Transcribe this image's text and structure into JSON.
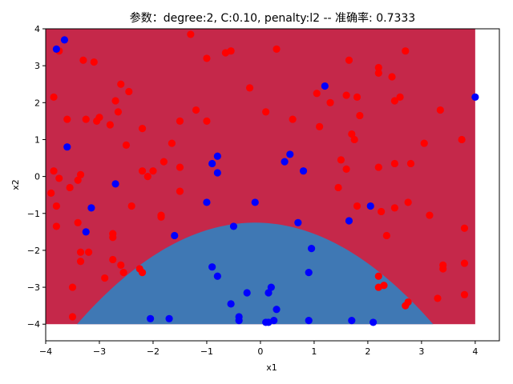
{
  "chart_data": {
    "type": "scatter",
    "title": "参数：degree:2, C:0.10, penalty:l2 -- 准确率: 0.7333",
    "xlabel": "x1",
    "ylabel": "x2",
    "xlim": [
      -4,
      4.45
    ],
    "ylim": [
      -4.45,
      4
    ],
    "xticks": [
      -4,
      -3,
      -2,
      -1,
      0,
      1,
      2,
      3,
      4
    ],
    "yticks": [
      -4,
      -3,
      -2,
      -1,
      0,
      1,
      2,
      3,
      4
    ],
    "grid": false,
    "region": {
      "x_range": [
        -4,
        4
      ],
      "y_range": [
        -4,
        4
      ],
      "colors": {
        "red_region": "#c5284a",
        "blue_region": "#3f78b4"
      },
      "boundary": {
        "form": "parabola",
        "vertex_x": -0.1,
        "vertex_y": -1.25,
        "a": -0.25
      }
    },
    "colors": {
      "red_class": "#ff0000",
      "blue_class": "#0000ff"
    },
    "series": [
      {
        "color": "#ff0000",
        "points": [
          [
            -3.75,
            3.4
          ],
          [
            -3.85,
            2.15
          ],
          [
            -3.6,
            1.55
          ],
          [
            -3.3,
            3.15
          ],
          [
            -3.1,
            3.1
          ],
          [
            -3.25,
            1.55
          ],
          [
            -3.05,
            1.5
          ],
          [
            -3.0,
            1.6
          ],
          [
            -2.8,
            1.4
          ],
          [
            -2.7,
            2.05
          ],
          [
            -2.6,
            2.5
          ],
          [
            -2.45,
            2.3
          ],
          [
            -2.65,
            1.75
          ],
          [
            -2.5,
            0.85
          ],
          [
            -2.2,
            1.3
          ],
          [
            -2.2,
            0.15
          ],
          [
            -2.1,
            0.0
          ],
          [
            -2.0,
            0.15
          ],
          [
            -1.8,
            0.4
          ],
          [
            -1.65,
            0.9
          ],
          [
            -1.5,
            1.5
          ],
          [
            -1.5,
            0.25
          ],
          [
            -1.5,
            -0.4
          ],
          [
            -1.3,
            3.85
          ],
          [
            -1.2,
            1.8
          ],
          [
            -1.0,
            1.5
          ],
          [
            -1.0,
            3.2
          ],
          [
            -0.65,
            3.35
          ],
          [
            -0.55,
            3.4
          ],
          [
            -0.2,
            2.4
          ],
          [
            0.3,
            3.45
          ],
          [
            0.1,
            1.75
          ],
          [
            0.6,
            1.55
          ],
          [
            1.05,
            2.25
          ],
          [
            1.1,
            1.35
          ],
          [
            1.3,
            2.0
          ],
          [
            1.6,
            2.2
          ],
          [
            1.65,
            3.15
          ],
          [
            1.7,
            1.15
          ],
          [
            1.75,
            1.0
          ],
          [
            1.8,
            2.15
          ],
          [
            1.85,
            1.65
          ],
          [
            1.5,
            0.45
          ],
          [
            1.6,
            0.2
          ],
          [
            1.45,
            -0.3
          ],
          [
            1.8,
            -0.8
          ],
          [
            2.2,
            2.8
          ],
          [
            2.2,
            2.95
          ],
          [
            2.45,
            2.7
          ],
          [
            2.5,
            2.05
          ],
          [
            2.6,
            2.15
          ],
          [
            2.7,
            3.4
          ],
          [
            2.2,
            0.25
          ],
          [
            2.5,
            0.35
          ],
          [
            2.8,
            0.35
          ],
          [
            3.05,
            0.9
          ],
          [
            3.35,
            1.8
          ],
          [
            3.75,
            1.0
          ],
          [
            2.25,
            -0.95
          ],
          [
            2.5,
            -0.85
          ],
          [
            2.75,
            -0.7
          ],
          [
            3.15,
            -1.05
          ],
          [
            2.35,
            -1.6
          ],
          [
            3.8,
            -1.4
          ],
          [
            3.8,
            -2.35
          ],
          [
            3.4,
            -2.4
          ],
          [
            3.4,
            -2.5
          ],
          [
            3.3,
            -3.3
          ],
          [
            3.8,
            -3.2
          ],
          [
            2.2,
            -2.7
          ],
          [
            2.3,
            -2.95
          ],
          [
            2.2,
            -3.0
          ],
          [
            2.75,
            -3.4
          ],
          [
            2.7,
            -3.5
          ],
          [
            -3.9,
            -0.45
          ],
          [
            -3.85,
            0.15
          ],
          [
            -3.8,
            -0.8
          ],
          [
            -3.8,
            -1.35
          ],
          [
            -3.75,
            -0.05
          ],
          [
            -3.55,
            -0.3
          ],
          [
            -3.4,
            -0.1
          ],
          [
            -3.35,
            0.05
          ],
          [
            -3.4,
            -1.25
          ],
          [
            -3.35,
            -2.05
          ],
          [
            -3.35,
            -2.3
          ],
          [
            -3.2,
            -2.05
          ],
          [
            -3.5,
            -3.0
          ],
          [
            -3.5,
            -3.8
          ],
          [
            -2.9,
            -2.75
          ],
          [
            -2.75,
            -1.55
          ],
          [
            -2.75,
            -1.65
          ],
          [
            -2.75,
            -2.25
          ],
          [
            -2.6,
            -2.4
          ],
          [
            -2.55,
            -2.6
          ],
          [
            -2.4,
            -0.8
          ],
          [
            -2.25,
            -2.5
          ],
          [
            -2.2,
            -2.6
          ],
          [
            -1.85,
            -1.05
          ],
          [
            -1.85,
            -1.1
          ]
        ]
      },
      {
        "color": "#0000ff",
        "points": [
          [
            -3.65,
            3.7
          ],
          [
            -3.8,
            3.45
          ],
          [
            -3.6,
            0.8
          ],
          [
            -2.7,
            -0.2
          ],
          [
            -3.15,
            -0.85
          ],
          [
            -3.25,
            -1.5
          ],
          [
            -0.8,
            0.55
          ],
          [
            -0.8,
            0.1
          ],
          [
            -0.9,
            0.35
          ],
          [
            -1.0,
            -0.7
          ],
          [
            -0.1,
            -0.7
          ],
          [
            0.45,
            0.4
          ],
          [
            0.55,
            0.6
          ],
          [
            0.8,
            0.15
          ],
          [
            1.2,
            2.45
          ],
          [
            4.0,
            2.15
          ],
          [
            0.7,
            -1.25
          ],
          [
            0.95,
            -1.95
          ],
          [
            0.9,
            -2.6
          ],
          [
            1.65,
            -1.2
          ],
          [
            2.05,
            -0.8
          ],
          [
            -1.6,
            -1.6
          ],
          [
            -0.5,
            -1.35
          ],
          [
            -0.9,
            -2.45
          ],
          [
            -0.8,
            -2.7
          ],
          [
            -0.25,
            -3.15
          ],
          [
            -0.55,
            -3.45
          ],
          [
            -0.4,
            -3.8
          ],
          [
            -0.4,
            -3.9
          ],
          [
            0.15,
            -3.15
          ],
          [
            0.2,
            -3.0
          ],
          [
            0.3,
            -3.6
          ],
          [
            0.25,
            -3.9
          ],
          [
            0.15,
            -3.95
          ],
          [
            0.1,
            -3.95
          ],
          [
            0.9,
            -3.9
          ],
          [
            1.7,
            -3.9
          ],
          [
            2.1,
            -3.95
          ],
          [
            -2.05,
            -3.85
          ],
          [
            -1.7,
            -3.85
          ]
        ]
      }
    ]
  }
}
